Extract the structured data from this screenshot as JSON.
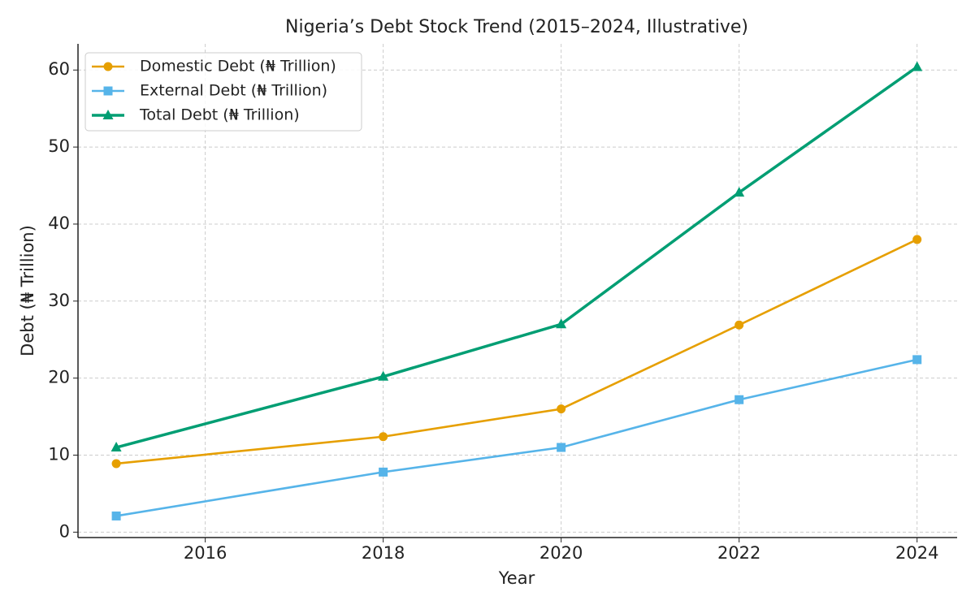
{
  "chart_data": {
    "type": "line",
    "title": "Nigeria’s Debt Stock Trend (2015–2024, Illustrative)",
    "x_label": "Year",
    "y_label": "Debt (₦ Trillion)",
    "x": [
      2015,
      2018,
      2020,
      2022,
      2024
    ],
    "series": [
      {
        "name": "Domestic Debt (₦ Trillion)",
        "color": "#e69f00",
        "marker": "circle",
        "values": [
          8.9,
          12.4,
          16.0,
          26.9,
          38.0
        ]
      },
      {
        "name": "External Debt (₦ Trillion)",
        "color": "#56b4e9",
        "marker": "square",
        "values": [
          2.1,
          7.8,
          11.0,
          17.2,
          22.4
        ]
      },
      {
        "name": "Total Debt (₦ Trillion)",
        "color": "#009e73",
        "marker": "triangle",
        "values": [
          11.0,
          20.2,
          27.0,
          44.1,
          60.4
        ]
      }
    ],
    "xlim": [
      2014.57,
      2024.45
    ],
    "xticks": [
      2016,
      2018,
      2020,
      2022,
      2024
    ],
    "ylim": [
      -0.7,
      63.4
    ],
    "yticks": [
      0,
      10,
      20,
      30,
      40,
      50,
      60
    ],
    "grid": true,
    "legend": "upper-left"
  }
}
